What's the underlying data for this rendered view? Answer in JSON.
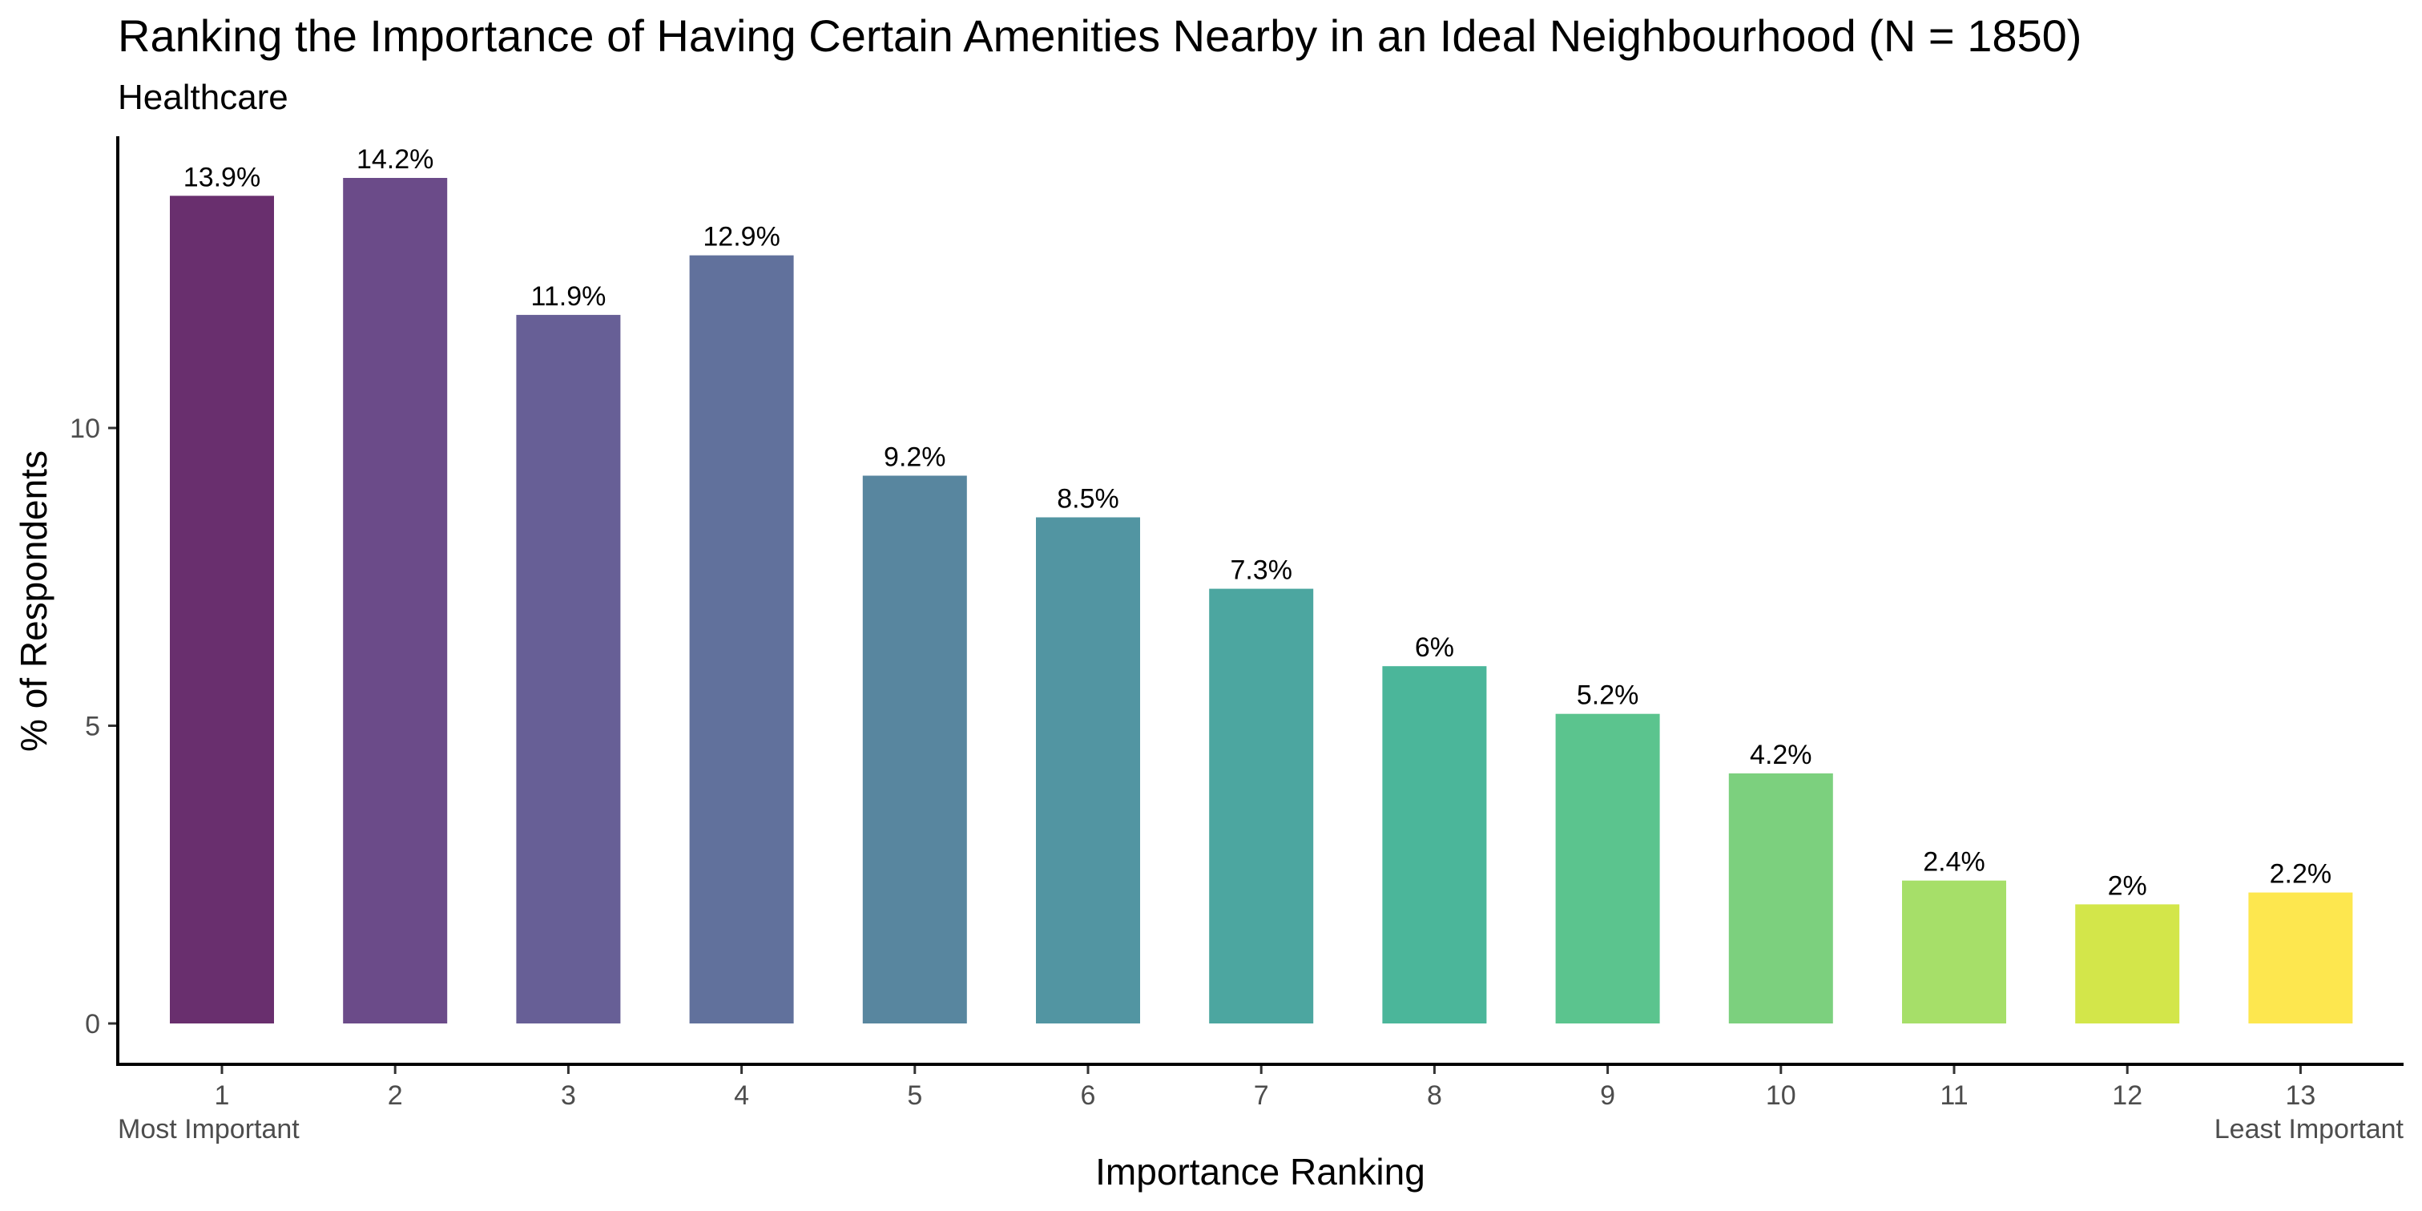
{
  "chart_data": {
    "type": "bar",
    "title": "Ranking the Importance of Having Certain Amenities Nearby in an Ideal Neighbourhood (N = 1850)",
    "subtitle": "Healthcare",
    "xlabel": "Importance Ranking",
    "ylabel": "% of Respondents",
    "categories": [
      "1",
      "2",
      "3",
      "4",
      "5",
      "6",
      "7",
      "8",
      "9",
      "10",
      "11",
      "12",
      "13"
    ],
    "values": [
      13.9,
      14.2,
      11.9,
      12.9,
      9.2,
      8.5,
      7.3,
      6.0,
      5.2,
      4.2,
      2.4,
      2.0,
      2.2
    ],
    "data_labels": [
      "13.9%",
      "14.2%",
      "11.9%",
      "12.9%",
      "9.2%",
      "8.5%",
      "7.3%",
      "6%",
      "5.2%",
      "4.2%",
      "2.4%",
      "2%",
      "2.2%"
    ],
    "colors": [
      "#692F6E",
      "#6B4B89",
      "#675F96",
      "#61719C",
      "#58869F",
      "#5295A2",
      "#4CA6A0",
      "#4BB69A",
      "#5BC48E",
      "#7CD07E",
      "#A6DF69",
      "#D3E64A",
      "#FDE74F"
    ],
    "x_end_labels": {
      "left": "Most Important",
      "right": "Least Important"
    },
    "y_ticks": [
      0,
      5,
      10
    ],
    "ylim": [
      0,
      14.9
    ],
    "grid": false,
    "legend": "none"
  }
}
